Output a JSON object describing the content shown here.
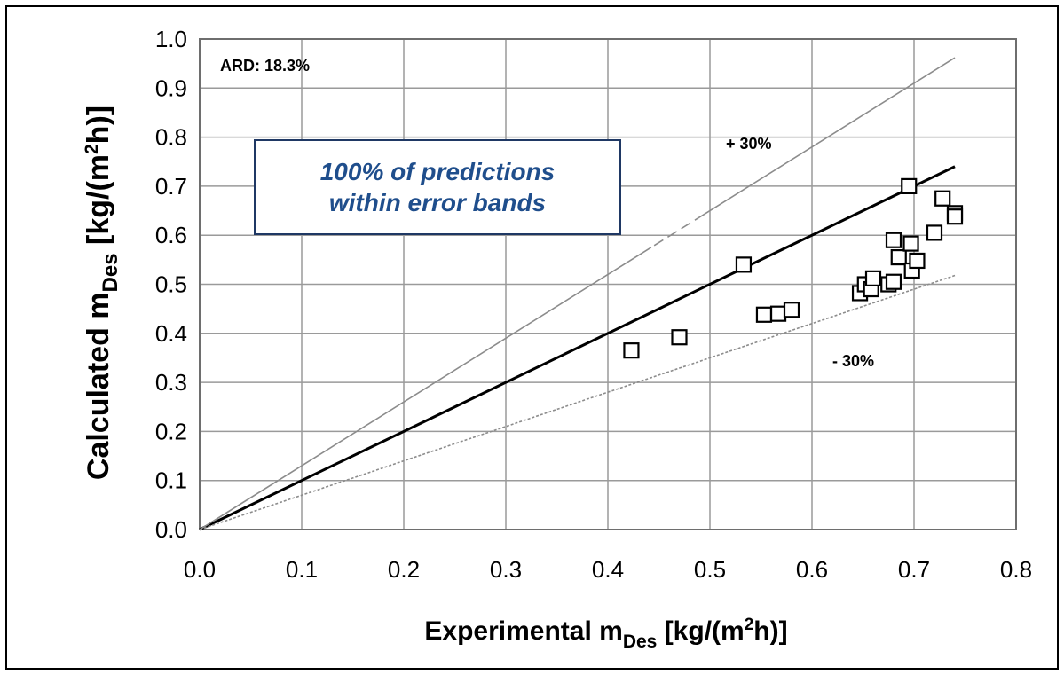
{
  "chart_data": {
    "type": "scatter",
    "xlabel": {
      "main": "Experimental m",
      "sub": "Des",
      "unit_pre": " [kg/(m",
      "sup": "2",
      "unit_post": "h)]"
    },
    "ylabel": {
      "main": "Calculated m",
      "sub": "Des",
      "unit_pre": " [kg/(m",
      "sup": "2",
      "unit_post": "h)]"
    },
    "xlim": [
      0.0,
      0.8
    ],
    "ylim": [
      0.0,
      1.0
    ],
    "x_ticks": [
      "0.0",
      "0.1",
      "0.2",
      "0.3",
      "0.4",
      "0.5",
      "0.6",
      "0.7",
      "0.8"
    ],
    "y_ticks": [
      "0.0",
      "0.1",
      "0.2",
      "0.3",
      "0.4",
      "0.5",
      "0.6",
      "0.7",
      "0.8",
      "0.9",
      "1.0"
    ],
    "grid": true,
    "series": [
      {
        "marker": "open-square",
        "points": [
          {
            "x": 0.423,
            "y": 0.365
          },
          {
            "x": 0.47,
            "y": 0.392
          },
          {
            "x": 0.533,
            "y": 0.54
          },
          {
            "x": 0.553,
            "y": 0.438
          },
          {
            "x": 0.567,
            "y": 0.44
          },
          {
            "x": 0.58,
            "y": 0.448
          },
          {
            "x": 0.647,
            "y": 0.482
          },
          {
            "x": 0.652,
            "y": 0.5
          },
          {
            "x": 0.658,
            "y": 0.49
          },
          {
            "x": 0.66,
            "y": 0.512
          },
          {
            "x": 0.675,
            "y": 0.5
          },
          {
            "x": 0.68,
            "y": 0.505
          },
          {
            "x": 0.68,
            "y": 0.59
          },
          {
            "x": 0.685,
            "y": 0.555
          },
          {
            "x": 0.695,
            "y": 0.7
          },
          {
            "x": 0.697,
            "y": 0.583
          },
          {
            "x": 0.698,
            "y": 0.528
          },
          {
            "x": 0.703,
            "y": 0.548
          },
          {
            "x": 0.72,
            "y": 0.605
          },
          {
            "x": 0.728,
            "y": 0.675
          },
          {
            "x": 0.74,
            "y": 0.645
          },
          {
            "x": 0.74,
            "y": 0.638
          }
        ]
      }
    ],
    "reference_lines": [
      {
        "kind": "parity",
        "x_end": 0.74,
        "slope": 1.0,
        "color": "#000000"
      },
      {
        "kind": "plus_band",
        "x_end": 0.74,
        "slope": 1.3,
        "color": "#8c8c8c"
      },
      {
        "kind": "minus_band",
        "x_end": 0.74,
        "slope": 0.7,
        "color": "#8c8c8c"
      }
    ],
    "annotations": {
      "ard": "ARD: 18.3%",
      "plus_band": "+ 30%",
      "minus_band": "- 30%"
    }
  },
  "callout": {
    "line1": "100% of predictions",
    "line2": "within error bands",
    "border_color": "#1f3864",
    "text_color": "#1f4e8c"
  }
}
